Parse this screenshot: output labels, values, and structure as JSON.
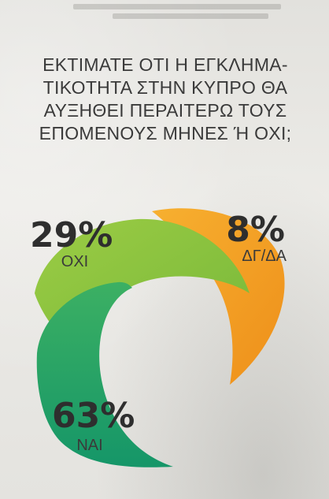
{
  "question": {
    "lines": [
      "ΕΚΤΙΜΑΤΕ ΟΤΙ Η ΕΓΚΛΗΜΑ-",
      "ΤΙΚΟΤΗΤΑ ΣΤΗΝ ΚΥΠΡΟ ΘΑ",
      "ΑΥΞΗΘΕΙ ΠΕΡΑΙΤΕΡΩ ΤΟΥΣ",
      "ΕΠΟΜΕΝΟΥΣ ΜΗΝΕΣ Ή ΟΧΙ;"
    ]
  },
  "chart_data": {
    "type": "pie",
    "title": "ΕΚΤΙΜΑΤΕ ΟΤΙ Η ΕΓΚΛΗΜΑΤΙΚΟΤΗΤΑ ΣΤΗΝ ΚΥΠΡΟ ΘΑ ΑΥΞΗΘΕΙ ΠΕΡΑΙΤΕΡΩ ΤΟΥΣ ΕΠΟΜΕΝΟΥΣ ΜΗΝΕΣ Ή ΟΧΙ;",
    "slices": [
      {
        "label": "ΟΧΙ",
        "value": 29,
        "value_text": "29%",
        "color": "#8cc63f"
      },
      {
        "label": "ΔΓ/ΔΑ",
        "value": 8,
        "value_text": "8%",
        "color": "#f5a21f"
      },
      {
        "label": "ΝΑΙ",
        "value": 63,
        "value_text": "63%",
        "color": "#1fa56f"
      }
    ]
  }
}
